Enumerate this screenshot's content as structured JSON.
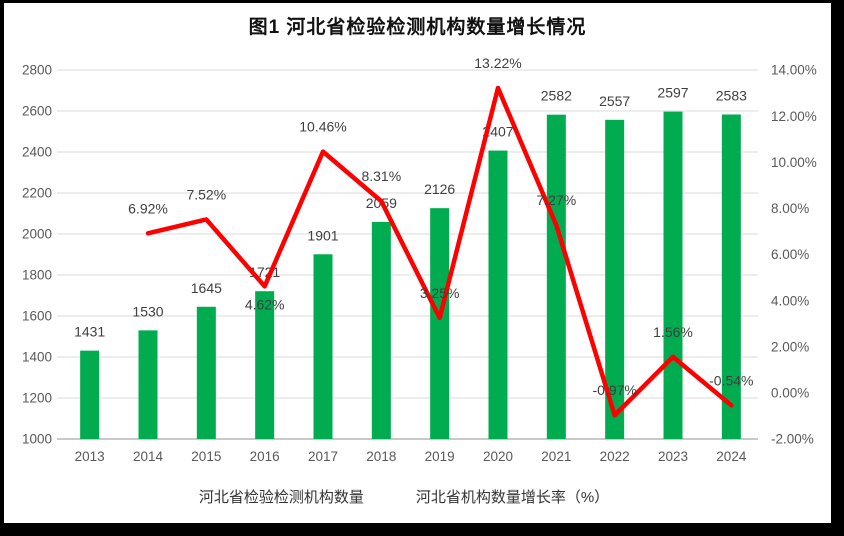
{
  "chart_data": {
    "type": "combo-bar-line",
    "title": "图1 河北省检验检测机构数量增长情况",
    "categories": [
      "2013",
      "2014",
      "2015",
      "2016",
      "2017",
      "2018",
      "2019",
      "2020",
      "2021",
      "2022",
      "2023",
      "2024"
    ],
    "series": [
      {
        "name": "河北省检验检测机构数量",
        "type": "bar",
        "axis": "left",
        "color": "#00AC4F",
        "values": [
          1431,
          1530,
          1645,
          1721,
          1901,
          2059,
          2126,
          2407,
          2582,
          2557,
          2597,
          2583
        ],
        "labels": [
          "1431",
          "1530",
          "1645",
          "1721",
          "1901",
          "2059",
          "2126",
          "2407",
          "2582",
          "2557",
          "2597",
          "2583"
        ]
      },
      {
        "name": "河北省机构数量增长率（%）",
        "type": "line",
        "axis": "right",
        "color": "#FE0000",
        "values": [
          null,
          6.92,
          7.52,
          4.62,
          10.46,
          8.31,
          3.25,
          13.22,
          7.27,
          -0.97,
          1.56,
          -0.54
        ],
        "labels": [
          null,
          "6.92%",
          "7.52%",
          "4.62%",
          "10.46%",
          "8.31%",
          "3.25%",
          "13.22%",
          "7.27%",
          "-0.97%",
          "1.56%",
          "-0.54%"
        ]
      }
    ],
    "left_axis": {
      "min": 1000,
      "max": 2800,
      "step": 200,
      "labels": [
        "1000",
        "1200",
        "1400",
        "1600",
        "1800",
        "2000",
        "2200",
        "2400",
        "2600",
        "2800"
      ]
    },
    "right_axis": {
      "min": -2,
      "max": 14,
      "step": 2,
      "labels": [
        "-2.00%",
        "0.00%",
        "2.00%",
        "4.00%",
        "6.00%",
        "8.00%",
        "10.00%",
        "12.00%",
        "14.00%"
      ]
    },
    "grid": true,
    "legend_position": "bottom",
    "colors": {
      "bar": "#00AC4F",
      "line": "#FE0000",
      "grid": "#E2E2E2",
      "axis_line": "#C9C9C9",
      "tick_text": "#595959",
      "data_label_text": "#3F3F3F",
      "title_text": "#111111"
    }
  },
  "legend": {
    "items": [
      {
        "label": "河北省检验检测机构数量",
        "marker": "bar",
        "color": "#00AC4F"
      },
      {
        "label": "河北省机构数量增长率（%）",
        "marker": "line",
        "color": "#FE0000"
      }
    ]
  }
}
